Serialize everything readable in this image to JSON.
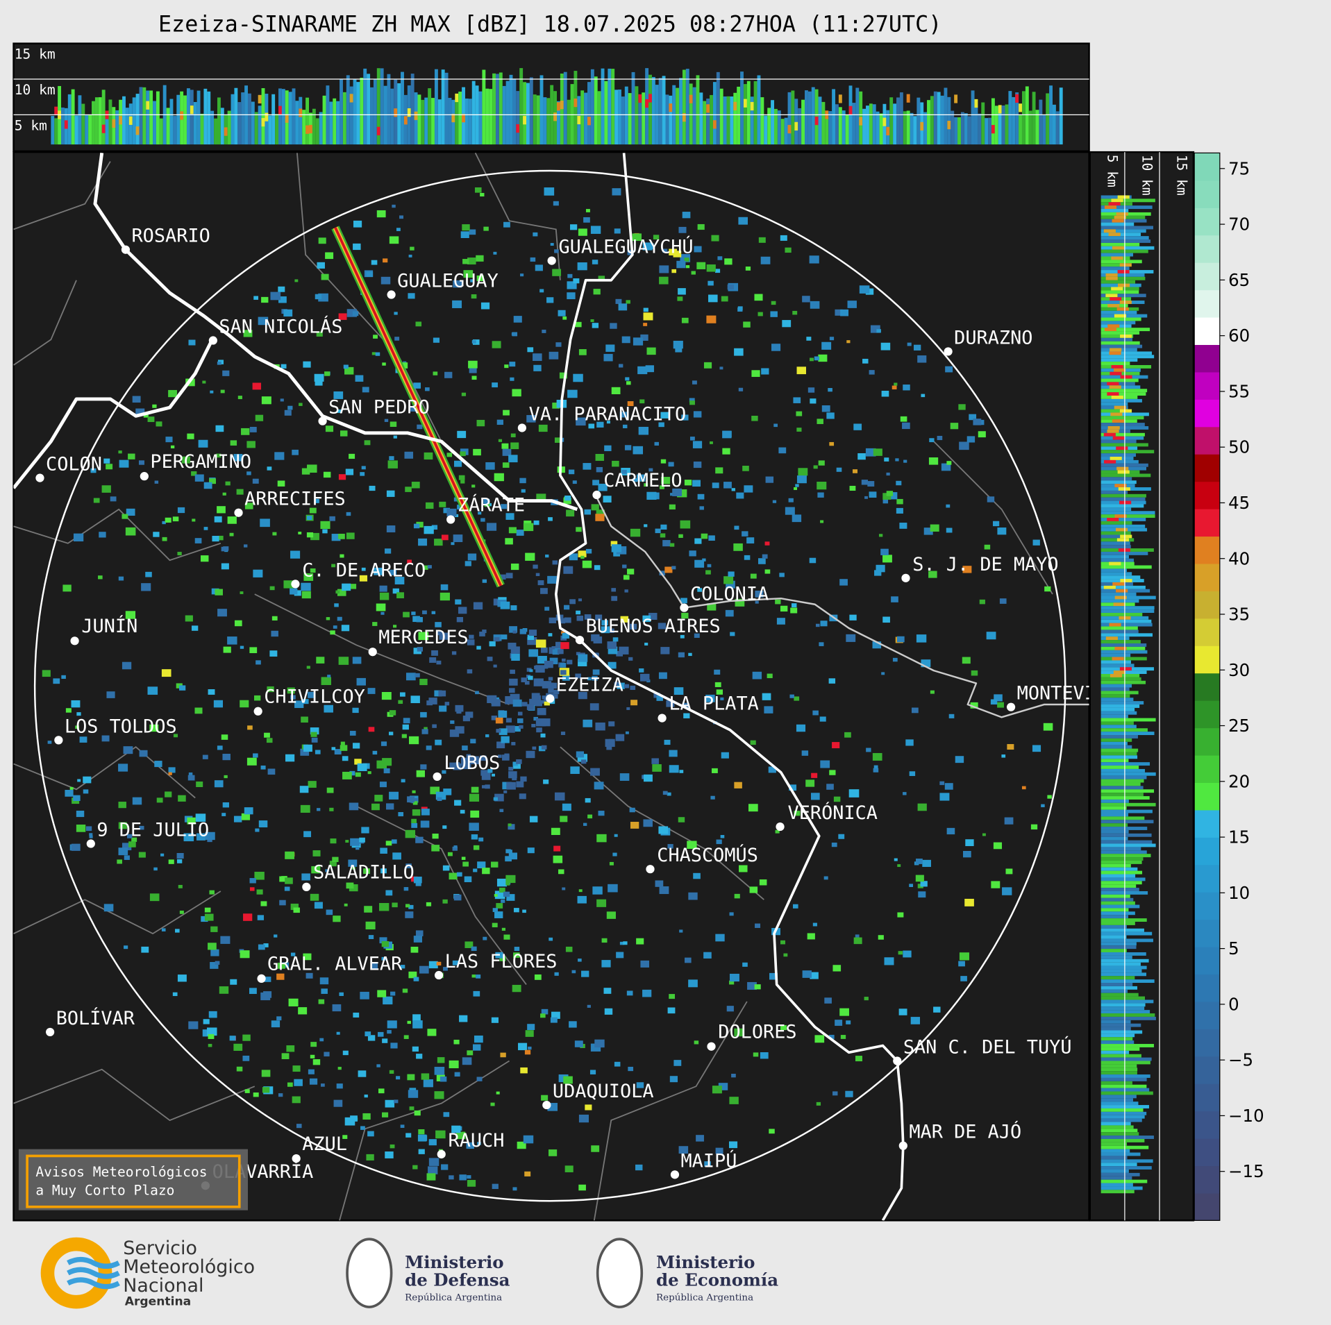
{
  "header": {
    "title": "Ezeiza-SINARAME ZH MAX [dBZ] 18.07.2025 08:27HOA (11:27UTC)"
  },
  "top_panel": {
    "height_labels": [
      "15 km",
      "10 km",
      "5 km"
    ]
  },
  "side_panel": {
    "height_labels": [
      "5 km",
      "10 km",
      "15 km"
    ]
  },
  "map": {
    "cities": [
      "ROSARIO",
      "GUALEGUAYCHÚ",
      "GUALEGUAY",
      "SAN NICOLÁS",
      "DURAZNO",
      "SAN PEDRO",
      "VA. PARANACITO",
      "COLON",
      "PERGAMINO",
      "CARMELO",
      "ARRECIFES",
      "ZÁRATE",
      "S. J. DE MAYO",
      "C. DE ARECO",
      "COLONIA",
      "BUENOS AIRES",
      "JUNÍN",
      "MERCEDES",
      "EZEIZA",
      "MONTEVIDEO",
      "CHIVILCOY",
      "LA PLATA",
      "LOS TOLDOS",
      "LOBOS",
      "VERÓNICA",
      "9 DE JULIO",
      "CHASCOMÚS",
      "SALADILLO",
      "GRAL. ALVEAR",
      "LAS FLORES",
      "BOLÍVAR",
      "DOLORES",
      "SAN C. DEL TUYÚ",
      "UDAQUIOLA",
      "MAR DE AJÓ",
      "AZUL",
      "RAUCH",
      "MAIPÚ",
      "OLAVARRÍA"
    ]
  },
  "colorbar": {
    "lim": [
      -19.4,
      76.4
    ],
    "ticks": [
      75,
      70,
      65,
      60,
      55,
      50,
      45,
      40,
      35,
      30,
      25,
      20,
      15,
      10,
      5,
      0,
      {
        "value": -5,
        "label": "−5"
      },
      {
        "value": -10,
        "label": "−10"
      },
      {
        "value": -15,
        "label": "−15"
      }
    ],
    "colors": [
      "#44466e",
      "#414a78",
      "#3e4f82",
      "#3b558a",
      "#385c92",
      "#35639a",
      "#336aa2",
      "#3071aa",
      "#2d78b2",
      "#2b80ba",
      "#2b88c0",
      "#2a90c8",
      "#299ad0",
      "#28a4d8",
      "#30b4e2",
      "#50e840",
      "#44cc38",
      "#38b030",
      "#2e9428",
      "#277a22",
      "#e8e830",
      "#d4cc34",
      "#c8b030",
      "#d8a028",
      "#e08020",
      "#e81830",
      "#c80010",
      "#a00000",
      "#c0106a",
      "#e000e0",
      "#c000c0",
      "#900090",
      "#ffffff",
      "#e0f5ec",
      "#c8eedd",
      "#b0e8d0",
      "#98e2c4",
      "#88dcbc",
      "#80d8b8"
    ]
  },
  "warning_box": {
    "lines": [
      "Avisos Meteorológicos",
      "a Muy Corto Plazo"
    ]
  },
  "footer": {
    "smn": {
      "lines": [
        "Servicio",
        "Meteorológico",
        "Nacional"
      ],
      "country": "Argentina"
    },
    "defensa": {
      "lines": [
        "Ministerio",
        "de Defensa"
      ],
      "subtitle": "República Argentina"
    },
    "economia": {
      "lines": [
        "Ministerio",
        "de Economía"
      ],
      "subtitle": "República Argentina"
    }
  }
}
